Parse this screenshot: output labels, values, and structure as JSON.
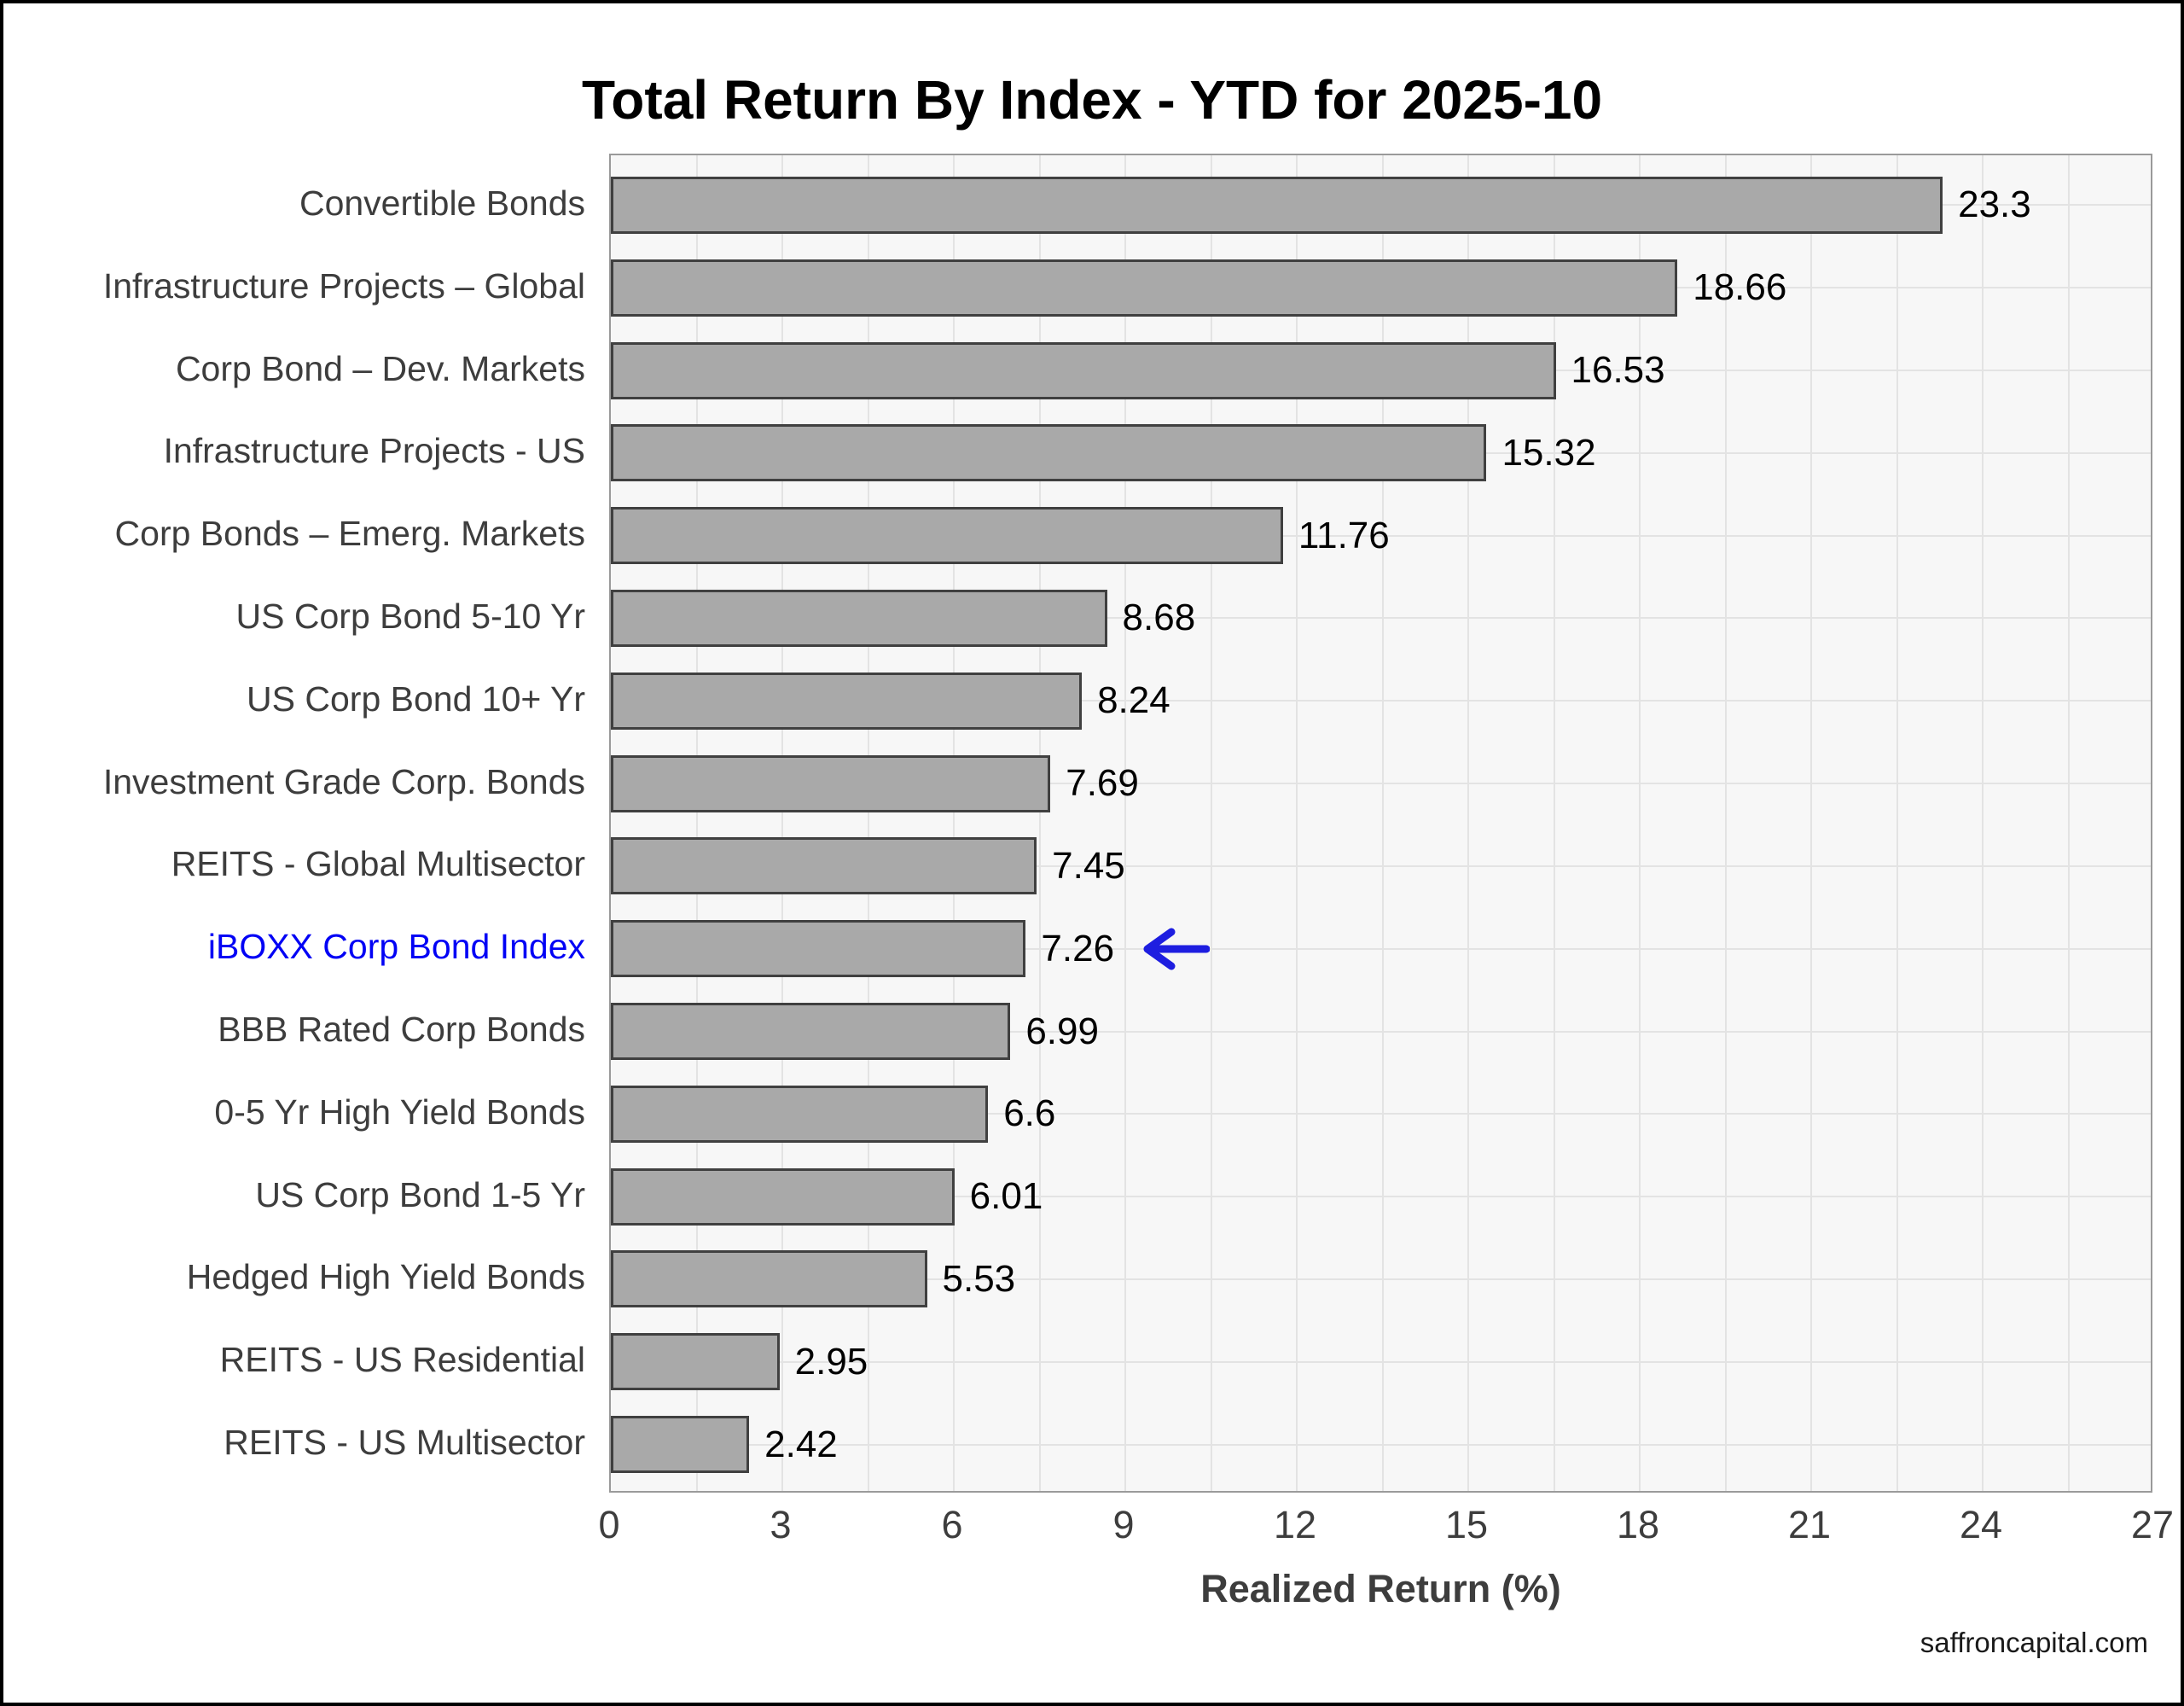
{
  "title": "Total Return By Index - YTD for 2025-10",
  "footer": "saffroncapital.com",
  "chart_data": {
    "type": "bar",
    "orientation": "horizontal",
    "title": "Total Return By Index - YTD for 2025-10",
    "xlabel": "Realized Return (%)",
    "ylabel": "",
    "xlim": [
      0,
      27
    ],
    "xticks": [
      0,
      3,
      6,
      9,
      12,
      15,
      18,
      21,
      24,
      27
    ],
    "grid": {
      "vertical_step": 1.5,
      "horizontal": "category-centers",
      "color": "#e3e3e3"
    },
    "legend": null,
    "categories": [
      "Convertible Bonds",
      "Infrastructure Projects – Global",
      "Corp Bond – Dev. Markets",
      "Infrastructure Projects - US",
      "Corp Bonds – Emerg. Markets",
      "US Corp Bond 5-10 Yr",
      "US Corp Bond 10+ Yr",
      "Investment Grade Corp. Bonds",
      "REITS - Global Multisector",
      "iBOXX Corp Bond Index",
      "BBB Rated Corp Bonds",
      "0-5 Yr High Yield Bonds",
      "US Corp Bond 1-5 Yr",
      "Hedged High Yield Bonds",
      "REITS - US Residential",
      "REITS - US Multisector"
    ],
    "values": [
      23.3,
      18.66,
      16.53,
      15.32,
      11.76,
      8.68,
      8.24,
      7.69,
      7.45,
      7.26,
      6.99,
      6.6,
      6.01,
      5.53,
      2.95,
      2.42
    ],
    "value_labels": [
      "23.3",
      "18.66",
      "16.53",
      "15.32",
      "11.76",
      "8.68",
      "8.24",
      "7.69",
      "7.45",
      "7.26",
      "6.99",
      "6.6",
      "6.01",
      "5.53",
      "2.95",
      "2.42"
    ],
    "highlight_index": 9,
    "highlight_color": "#0202f5",
    "annotation": {
      "type": "left-arrow",
      "row_index": 9,
      "color": "#1e1ee0"
    },
    "bar_fill": "#a9a9a9",
    "bar_border": "#404040",
    "plot_background": "#f7f7f7"
  }
}
